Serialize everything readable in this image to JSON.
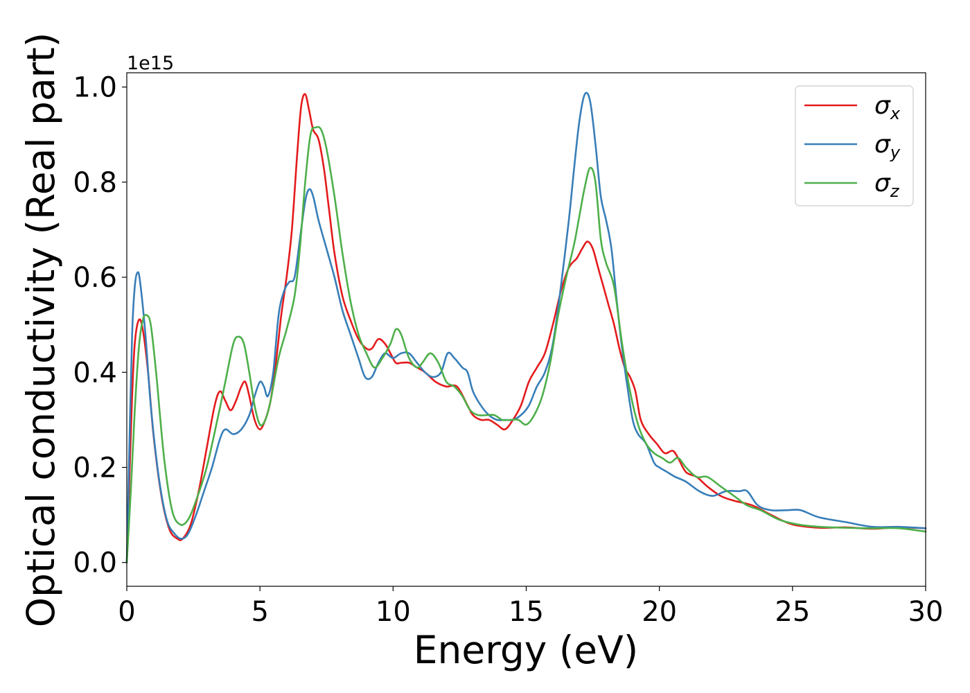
{
  "chart_data": {
    "type": "line",
    "title": "",
    "xlabel": "Energy (eV)",
    "ylabel": "Optical conductivity (Real part)",
    "y_offset_label": "1e15",
    "xlim": [
      0,
      30
    ],
    "ylim": [
      -0.05,
      1.03
    ],
    "xticks": [
      0,
      5,
      10,
      15,
      20,
      25,
      30
    ],
    "yticks": [
      0.0,
      0.2,
      0.4,
      0.6,
      0.8,
      1.0
    ],
    "xtick_labels": [
      "0",
      "5",
      "10",
      "15",
      "20",
      "25",
      "30"
    ],
    "ytick_labels": [
      "0.0",
      "0.2",
      "0.4",
      "0.6",
      "0.8",
      "1.0"
    ],
    "grid": false,
    "legend_position": "top-right",
    "series": [
      {
        "name": "σx",
        "symbol": "σ",
        "subscript": "x",
        "color": "#e41a1c",
        "x": [
          0,
          0.1,
          0.2,
          0.3,
          0.45,
          0.6,
          0.8,
          1.0,
          1.3,
          1.6,
          1.9,
          2.1,
          2.4,
          2.7,
          3.0,
          3.3,
          3.5,
          3.7,
          3.9,
          4.1,
          4.3,
          4.45,
          4.6,
          4.8,
          5.0,
          5.2,
          5.4,
          5.6,
          5.8,
          6.0,
          6.2,
          6.4,
          6.55,
          6.7,
          6.85,
          7.0,
          7.2,
          7.4,
          7.6,
          7.8,
          8.1,
          8.4,
          8.7,
          9.0,
          9.2,
          9.45,
          9.7,
          9.9,
          10.1,
          10.3,
          10.6,
          10.9,
          11.2,
          11.6,
          12.0,
          12.4,
          12.8,
          13.0,
          13.3,
          13.6,
          13.9,
          14.2,
          14.5,
          14.8,
          15.1,
          15.4,
          15.7,
          16.0,
          16.3,
          16.6,
          16.9,
          17.1,
          17.3,
          17.5,
          17.7,
          17.9,
          18.1,
          18.3,
          18.5,
          18.7,
          18.9,
          19.1,
          19.3,
          19.6,
          19.9,
          20.2,
          20.5,
          20.7,
          21.0,
          21.4,
          21.8,
          22.3,
          22.8,
          23.5,
          24.2,
          25.0,
          26.0,
          27.0,
          28.0,
          29.0,
          30.0
        ],
        "y": [
          0.0,
          0.18,
          0.35,
          0.46,
          0.51,
          0.49,
          0.4,
          0.27,
          0.14,
          0.07,
          0.05,
          0.05,
          0.08,
          0.15,
          0.24,
          0.33,
          0.36,
          0.34,
          0.32,
          0.34,
          0.37,
          0.38,
          0.35,
          0.3,
          0.28,
          0.3,
          0.34,
          0.42,
          0.52,
          0.6,
          0.7,
          0.86,
          0.96,
          0.985,
          0.95,
          0.91,
          0.89,
          0.83,
          0.74,
          0.65,
          0.56,
          0.51,
          0.47,
          0.45,
          0.45,
          0.47,
          0.46,
          0.44,
          0.42,
          0.42,
          0.42,
          0.41,
          0.4,
          0.38,
          0.37,
          0.37,
          0.33,
          0.31,
          0.3,
          0.3,
          0.29,
          0.28,
          0.3,
          0.33,
          0.38,
          0.41,
          0.44,
          0.5,
          0.57,
          0.62,
          0.64,
          0.66,
          0.675,
          0.66,
          0.62,
          0.58,
          0.54,
          0.5,
          0.45,
          0.41,
          0.39,
          0.36,
          0.3,
          0.27,
          0.25,
          0.23,
          0.235,
          0.22,
          0.19,
          0.18,
          0.16,
          0.14,
          0.13,
          0.12,
          0.1,
          0.08,
          0.073,
          0.074,
          0.071,
          0.074,
          0.072
        ]
      },
      {
        "name": "σy",
        "symbol": "σ",
        "subscript": "y",
        "color": "#377eb8",
        "x": [
          0,
          0.1,
          0.2,
          0.3,
          0.4,
          0.5,
          0.7,
          0.9,
          1.2,
          1.5,
          1.8,
          2.05,
          2.3,
          2.6,
          2.9,
          3.2,
          3.5,
          3.7,
          4.0,
          4.3,
          4.6,
          4.8,
          5.0,
          5.15,
          5.3,
          5.5,
          5.7,
          5.9,
          6.1,
          6.3,
          6.5,
          6.7,
          6.85,
          7.0,
          7.2,
          7.5,
          7.8,
          8.1,
          8.4,
          8.7,
          8.95,
          9.2,
          9.45,
          9.7,
          10.0,
          10.3,
          10.6,
          10.9,
          11.2,
          11.5,
          11.8,
          12.05,
          12.3,
          12.6,
          12.8,
          13.0,
          13.3,
          13.6,
          13.9,
          14.2,
          14.5,
          14.8,
          15.1,
          15.4,
          15.7,
          16.0,
          16.3,
          16.6,
          16.8,
          17.0,
          17.2,
          17.4,
          17.6,
          17.8,
          18.0,
          18.2,
          18.4,
          18.6,
          18.8,
          19.0,
          19.2,
          19.5,
          19.8,
          20.0,
          20.3,
          20.6,
          21.0,
          21.5,
          22.0,
          22.5,
          23.0,
          23.3,
          23.7,
          24.2,
          24.8,
          25.3,
          26.0,
          27.0,
          28.0,
          29.0,
          30.0
        ],
        "y": [
          0.0,
          0.25,
          0.48,
          0.58,
          0.61,
          0.59,
          0.48,
          0.33,
          0.18,
          0.09,
          0.06,
          0.05,
          0.06,
          0.1,
          0.15,
          0.2,
          0.26,
          0.28,
          0.27,
          0.28,
          0.31,
          0.35,
          0.38,
          0.37,
          0.35,
          0.4,
          0.52,
          0.57,
          0.59,
          0.6,
          0.68,
          0.76,
          0.785,
          0.77,
          0.72,
          0.66,
          0.6,
          0.53,
          0.48,
          0.43,
          0.39,
          0.39,
          0.42,
          0.44,
          0.43,
          0.44,
          0.44,
          0.42,
          0.4,
          0.39,
          0.4,
          0.44,
          0.43,
          0.41,
          0.4,
          0.36,
          0.33,
          0.31,
          0.3,
          0.3,
          0.3,
          0.31,
          0.33,
          0.37,
          0.4,
          0.46,
          0.58,
          0.72,
          0.83,
          0.93,
          0.985,
          0.97,
          0.88,
          0.77,
          0.72,
          0.66,
          0.55,
          0.45,
          0.37,
          0.3,
          0.27,
          0.25,
          0.21,
          0.2,
          0.19,
          0.18,
          0.17,
          0.15,
          0.14,
          0.15,
          0.15,
          0.15,
          0.12,
          0.11,
          0.11,
          0.11,
          0.095,
          0.085,
          0.075,
          0.075,
          0.072
        ]
      },
      {
        "name": "σz",
        "symbol": "σ",
        "subscript": "z",
        "color": "#4daf4a",
        "x": [
          0,
          0.15,
          0.3,
          0.45,
          0.6,
          0.75,
          0.9,
          1.1,
          1.4,
          1.7,
          2.0,
          2.3,
          2.6,
          3.0,
          3.4,
          3.7,
          4.0,
          4.2,
          4.4,
          4.6,
          4.8,
          5.0,
          5.2,
          5.4,
          5.7,
          6.0,
          6.3,
          6.5,
          6.7,
          6.9,
          7.1,
          7.3,
          7.5,
          7.8,
          8.1,
          8.4,
          8.7,
          9.0,
          9.3,
          9.6,
          9.9,
          10.1,
          10.3,
          10.6,
          10.9,
          11.1,
          11.4,
          11.7,
          12.0,
          12.3,
          12.6,
          12.9,
          13.2,
          13.5,
          13.8,
          14.1,
          14.4,
          14.7,
          15.0,
          15.3,
          15.6,
          15.9,
          16.2,
          16.5,
          16.8,
          17.0,
          17.2,
          17.4,
          17.6,
          17.8,
          18.0,
          18.3,
          18.6,
          18.9,
          19.2,
          19.5,
          19.8,
          20.1,
          20.4,
          20.7,
          21.0,
          21.4,
          21.8,
          22.3,
          22.8,
          23.3,
          23.8,
          24.5,
          25.2,
          26.0,
          27.0,
          28.0,
          29.0,
          30.0
        ],
        "y": [
          0.0,
          0.15,
          0.32,
          0.45,
          0.51,
          0.52,
          0.5,
          0.4,
          0.22,
          0.11,
          0.08,
          0.09,
          0.13,
          0.2,
          0.3,
          0.38,
          0.46,
          0.475,
          0.46,
          0.4,
          0.33,
          0.29,
          0.3,
          0.34,
          0.43,
          0.49,
          0.56,
          0.66,
          0.8,
          0.9,
          0.915,
          0.91,
          0.87,
          0.77,
          0.65,
          0.55,
          0.48,
          0.44,
          0.41,
          0.43,
          0.46,
          0.49,
          0.48,
          0.43,
          0.41,
          0.42,
          0.44,
          0.42,
          0.38,
          0.37,
          0.35,
          0.32,
          0.31,
          0.31,
          0.31,
          0.3,
          0.3,
          0.3,
          0.29,
          0.31,
          0.35,
          0.42,
          0.52,
          0.6,
          0.67,
          0.73,
          0.79,
          0.83,
          0.8,
          0.68,
          0.63,
          0.58,
          0.46,
          0.36,
          0.29,
          0.25,
          0.23,
          0.22,
          0.21,
          0.22,
          0.2,
          0.18,
          0.18,
          0.16,
          0.14,
          0.12,
          0.11,
          0.09,
          0.08,
          0.075,
          0.073,
          0.072,
          0.072,
          0.065
        ]
      }
    ]
  }
}
